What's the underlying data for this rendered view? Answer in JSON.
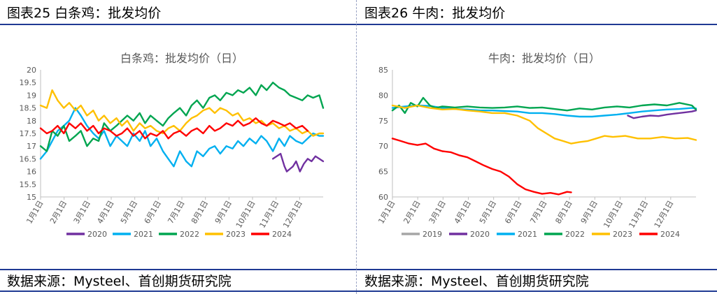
{
  "panels": [
    {
      "header": "图表25 白条鸡：批发均价",
      "source": "数据来源：Mysteel、首创期货研究院",
      "chart_data": {
        "type": "line",
        "title": "白条鸡：批发均价（日）",
        "xlabel": "",
        "ylabel": "",
        "x_ticks": [
          "1月1日",
          "2月1日",
          "3月1日",
          "4月1日",
          "5月1日",
          "6月1日",
          "7月1日",
          "8月1日",
          "9月1日",
          "10月1日",
          "11月1日",
          "12月1日"
        ],
        "x_domain_days": [
          0,
          365
        ],
        "y_ticks": [
          "15",
          "15.5",
          "16",
          "16.5",
          "17",
          "17.5",
          "18",
          "18.5",
          "19",
          "19.5",
          "20"
        ],
        "ylim": [
          15,
          20
        ],
        "legend_position": "bottom",
        "series": [
          {
            "name": "2020",
            "color": "#7030a0",
            "x": [
              300,
              305,
              310,
              315,
              318,
              322,
              326,
              330,
              335,
              340,
              345,
              350,
              355,
              360,
              365
            ],
            "y": [
              16.5,
              16.6,
              16.7,
              16.2,
              16.0,
              16.1,
              16.2,
              16.4,
              16.0,
              16.3,
              16.5,
              16.4,
              16.6,
              16.5,
              16.4
            ]
          },
          {
            "name": "2021",
            "color": "#00b0f0",
            "x": [
              0,
              8,
              15,
              22,
              30,
              37,
              45,
              52,
              60,
              68,
              75,
              82,
              90,
              98,
              105,
              112,
              120,
              128,
              135,
              142,
              150,
              158,
              165,
              172,
              180,
              188,
              195,
              202,
              210,
              218,
              225,
              232,
              240,
              248,
              255,
              262,
              270,
              278,
              285,
              292,
              300,
              308,
              315,
              322,
              330,
              338,
              345,
              352,
              360,
              365
            ],
            "y": [
              16.5,
              16.8,
              17.2,
              17.6,
              17.8,
              18.0,
              18.5,
              18.2,
              17.8,
              17.5,
              17.3,
              17.6,
              17.0,
              17.4,
              17.2,
              17.0,
              17.5,
              17.2,
              17.6,
              17.0,
              17.3,
              16.8,
              16.5,
              16.2,
              16.8,
              16.4,
              16.2,
              16.8,
              16.6,
              16.9,
              17.0,
              16.7,
              17.0,
              16.9,
              17.2,
              17.0,
              17.3,
              17.1,
              17.4,
              17.2,
              16.8,
              17.3,
              17.0,
              17.4,
              17.2,
              17.1,
              17.3,
              17.5,
              17.4,
              17.4
            ]
          },
          {
            "name": "2022",
            "color": "#00a550",
            "x": [
              0,
              8,
              15,
              22,
              30,
              37,
              45,
              52,
              60,
              68,
              75,
              82,
              90,
              98,
              105,
              112,
              120,
              128,
              135,
              142,
              150,
              158,
              165,
              172,
              180,
              188,
              195,
              202,
              210,
              218,
              225,
              232,
              240,
              248,
              255,
              262,
              270,
              278,
              285,
              292,
              300,
              308,
              315,
              322,
              330,
              338,
              345,
              352,
              360,
              365
            ],
            "y": [
              17.0,
              16.8,
              17.6,
              17.4,
              17.8,
              17.2,
              17.4,
              17.6,
              17.0,
              17.3,
              17.2,
              17.9,
              17.6,
              17.8,
              18.0,
              18.2,
              18.0,
              18.3,
              17.9,
              18.2,
              18.0,
              17.8,
              18.1,
              18.3,
              18.5,
              18.2,
              18.6,
              18.8,
              18.5,
              18.9,
              19.0,
              18.8,
              19.1,
              19.0,
              19.2,
              19.1,
              19.3,
              19.0,
              19.4,
              19.2,
              19.5,
              19.3,
              19.2,
              19.0,
              18.9,
              18.8,
              19.0,
              18.9,
              19.0,
              18.5
            ]
          },
          {
            "name": "2023",
            "color": "#ffc000",
            "x": [
              0,
              8,
              15,
              22,
              30,
              37,
              45,
              52,
              60,
              68,
              75,
              82,
              90,
              98,
              105,
              112,
              120,
              128,
              135,
              142,
              150,
              158,
              165,
              172,
              180,
              188,
              195,
              202,
              210,
              218,
              225,
              232,
              240,
              248,
              255,
              262,
              270,
              278,
              285,
              292,
              300,
              308,
              315,
              322,
              330,
              338,
              345,
              352,
              360,
              365
            ],
            "y": [
              18.6,
              18.5,
              19.2,
              18.8,
              18.5,
              18.7,
              18.4,
              18.6,
              18.2,
              18.4,
              18.0,
              18.2,
              17.9,
              18.1,
              17.8,
              18.0,
              17.6,
              17.9,
              17.7,
              17.8,
              17.6,
              17.5,
              17.7,
              17.8,
              17.6,
              17.9,
              18.1,
              18.2,
              18.4,
              18.5,
              18.3,
              18.5,
              18.4,
              18.2,
              18.3,
              18.0,
              18.1,
              17.9,
              18.0,
              17.8,
              17.9,
              17.7,
              17.8,
              17.6,
              17.7,
              17.5,
              17.6,
              17.4,
              17.5,
              17.5
            ]
          },
          {
            "name": "2024",
            "color": "#ff0000",
            "x": [
              0,
              8,
              15,
              22,
              30,
              37,
              45,
              52,
              60,
              68,
              75,
              82,
              90,
              98,
              105,
              112,
              120,
              128,
              135,
              142,
              150,
              158,
              165,
              172,
              180,
              188,
              195,
              202,
              210,
              218,
              225,
              232,
              240,
              248,
              255,
              262,
              270,
              278,
              285,
              292,
              300,
              308,
              315,
              322,
              330,
              338,
              345
            ],
            "y": [
              17.7,
              17.5,
              17.6,
              17.8,
              17.5,
              17.9,
              17.7,
              17.9,
              17.6,
              17.8,
              17.5,
              17.7,
              17.6,
              17.4,
              17.5,
              17.7,
              17.4,
              17.6,
              17.3,
              17.5,
              17.4,
              17.6,
              17.3,
              17.5,
              17.6,
              17.4,
              17.6,
              17.7,
              17.5,
              17.8,
              17.6,
              17.7,
              17.9,
              17.8,
              18.0,
              17.8,
              17.9,
              18.1,
              17.9,
              17.8,
              18.0,
              17.9,
              17.8,
              17.9,
              17.7,
              17.8,
              17.6
            ]
          }
        ]
      }
    },
    {
      "header": "图表26 牛肉：批发均价",
      "source": "数据来源：Mysteel、首创期货研究院",
      "chart_data": {
        "type": "line",
        "title": "牛肉：批发均价（日）",
        "xlabel": "",
        "ylabel": "",
        "x_ticks": [
          "1月1日",
          "2月1日",
          "3月1日",
          "4月1日",
          "5月1日",
          "6月1日",
          "7月1日",
          "8月1日",
          "9月1日",
          "10月1日",
          "11月1日",
          "12月1日"
        ],
        "x_domain_days": [
          0,
          365
        ],
        "y_ticks": [
          "60",
          "65",
          "70",
          "75",
          "80",
          "85"
        ],
        "ylim": [
          60,
          85
        ],
        "legend_position": "bottom",
        "series": [
          {
            "name": "2019",
            "color": "#a6a6a6",
            "x": [],
            "y": []
          },
          {
            "name": "2020",
            "color": "#7030a0",
            "x": [
              283,
              290,
              300,
              310,
              320,
              330,
              340,
              350,
              360,
              365
            ],
            "y": [
              76.0,
              75.5,
              75.8,
              76.0,
              75.9,
              76.2,
              76.4,
              76.6,
              76.8,
              77.0
            ]
          },
          {
            "name": "2021",
            "color": "#00b0f0",
            "x": [
              0,
              15,
              30,
              45,
              60,
              75,
              90,
              105,
              120,
              135,
              150,
              165,
              180,
              195,
              210,
              225,
              240,
              255,
              270,
              285,
              300,
              315,
              330,
              345,
              360,
              365
            ],
            "y": [
              77.5,
              77.8,
              78.0,
              77.9,
              77.5,
              77.3,
              77.2,
              77.0,
              77.0,
              76.9,
              76.8,
              76.5,
              76.5,
              76.3,
              76.0,
              75.8,
              75.8,
              76.0,
              76.2,
              76.5,
              76.8,
              77.0,
              77.2,
              77.3,
              77.5,
              77.4
            ]
          },
          {
            "name": "2022",
            "color": "#00a550",
            "x": [
              0,
              8,
              15,
              22,
              30,
              37,
              45,
              52,
              60,
              75,
              90,
              105,
              120,
              135,
              150,
              165,
              180,
              195,
              210,
              225,
              240,
              255,
              270,
              285,
              300,
              315,
              330,
              345,
              360,
              365
            ],
            "y": [
              77.0,
              78.0,
              76.5,
              78.5,
              77.8,
              79.5,
              78.0,
              77.5,
              77.8,
              77.6,
              77.8,
              77.6,
              77.5,
              77.6,
              77.8,
              77.5,
              77.6,
              77.3,
              77.0,
              77.4,
              77.2,
              77.6,
              77.8,
              77.6,
              78.0,
              78.2,
              78.0,
              78.5,
              78.0,
              77.2
            ]
          },
          {
            "name": "2023",
            "color": "#ffc000",
            "x": [
              0,
              15,
              30,
              45,
              60,
              75,
              90,
              105,
              120,
              135,
              150,
              165,
              175,
              185,
              195,
              205,
              215,
              225,
              235,
              245,
              255,
              265,
              280,
              295,
              310,
              325,
              340,
              355,
              365
            ],
            "y": [
              78.0,
              77.5,
              78.0,
              77.5,
              77.2,
              77.3,
              77.0,
              76.8,
              76.5,
              76.5,
              76.0,
              75.0,
              73.5,
              72.5,
              71.5,
              71.0,
              70.5,
              70.8,
              71.0,
              71.5,
              72.0,
              71.8,
              72.0,
              71.5,
              71.5,
              71.8,
              71.5,
              71.6,
              71.2
            ]
          },
          {
            "name": "2024",
            "color": "#ff0000",
            "x": [
              0,
              10,
              20,
              30,
              40,
              50,
              60,
              70,
              80,
              90,
              100,
              110,
              120,
              130,
              140,
              150,
              160,
              170,
              180,
              190,
              200,
              210,
              215
            ],
            "y": [
              71.5,
              71.0,
              70.5,
              70.2,
              70.5,
              69.5,
              69.0,
              68.8,
              68.2,
              67.8,
              67.0,
              66.2,
              65.5,
              65.0,
              64.0,
              62.5,
              61.5,
              61.0,
              60.6,
              60.8,
              60.5,
              61.0,
              60.9
            ]
          }
        ]
      }
    }
  ]
}
